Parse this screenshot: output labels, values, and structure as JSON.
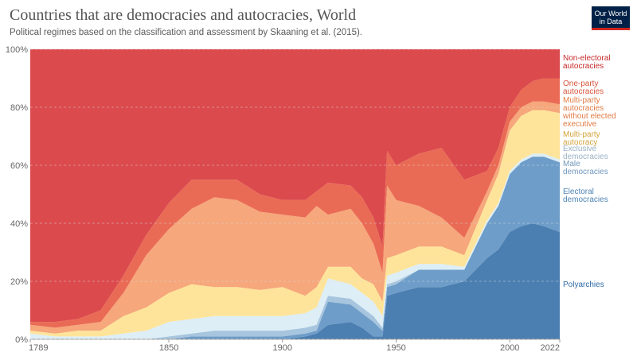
{
  "header": {
    "title": "Countries that are democracies and autocracies, World",
    "subtitle": "Political regimes based on the classification and assessment by Skaaning et al. (2015).",
    "logo_line1": "Our World",
    "logo_line2": "in Data"
  },
  "colors": {
    "text_primary": "#555555",
    "axis": "#666666",
    "grid": "#dddddd"
  },
  "chart_data": {
    "type": "area",
    "stacked": true,
    "normalized": true,
    "title": "Countries that are democracies and autocracies, World",
    "subtitle": "Political regimes based on the classification and assessment by Skaaning et al. (2015).",
    "x_ticks": [
      1789,
      1850,
      1900,
      1950,
      2000,
      2022
    ],
    "y_ticks": [
      "0%",
      "20%",
      "40%",
      "60%",
      "80%",
      "100%"
    ],
    "xlim": [
      1789,
      2022
    ],
    "ylim": [
      0,
      100
    ],
    "grid": "horizontal dashed",
    "legend": "right, inline labels",
    "x": [
      1789,
      1800,
      1810,
      1820,
      1830,
      1840,
      1850,
      1860,
      1870,
      1880,
      1890,
      1900,
      1910,
      1915,
      1920,
      1930,
      1935,
      1940,
      1944,
      1946,
      1950,
      1960,
      1970,
      1980,
      1990,
      1995,
      2000,
      2005,
      2010,
      2015,
      2022
    ],
    "series": [
      {
        "name": "Polyarchies",
        "color": "#4c7fb1",
        "values": [
          0,
          0,
          0,
          0,
          0,
          0,
          0,
          0,
          0,
          0,
          0,
          0,
          1,
          2,
          5,
          6,
          4,
          1,
          1,
          15,
          16,
          18,
          18,
          20,
          28,
          31,
          37,
          39,
          40,
          39,
          37
        ]
      },
      {
        "name": "Electoral democracies",
        "color": "#6e9dc9",
        "values": [
          0,
          0,
          0,
          0,
          0,
          0,
          0,
          1,
          1,
          1,
          1,
          1,
          1,
          1,
          8,
          6,
          5,
          5,
          2,
          3,
          3,
          6,
          6,
          4,
          12,
          15,
          20,
          22,
          23,
          24,
          24
        ]
      },
      {
        "name": "Male democracies",
        "color": "#a7c5de",
        "values": [
          0,
          0,
          0,
          0,
          0,
          0,
          1,
          1,
          2,
          2,
          2,
          2,
          2,
          2,
          2,
          2,
          2,
          2,
          1,
          1,
          1,
          0,
          0,
          0,
          0,
          0,
          0,
          0,
          0,
          0,
          0
        ]
      },
      {
        "name": "Exclusive democracies",
        "color": "#ddeef6",
        "values": [
          2,
          1,
          1,
          1,
          2,
          3,
          5,
          5,
          5,
          5,
          5,
          5,
          5,
          6,
          6,
          5,
          5,
          5,
          4,
          3,
          3,
          2,
          2,
          1,
          1,
          1,
          1,
          1,
          1,
          1,
          1
        ]
      },
      {
        "name": "Multi-party autocracy",
        "color": "#fee49a",
        "values": [
          1,
          1,
          2,
          2,
          6,
          8,
          10,
          12,
          10,
          10,
          9,
          10,
          6,
          7,
          4,
          6,
          5,
          6,
          5,
          6,
          6,
          6,
          6,
          4,
          7,
          10,
          14,
          15,
          15,
          15,
          16
        ]
      },
      {
        "name": "Multi-party autocracies without elected executive",
        "color": "#f6a77b",
        "values": [
          2,
          2,
          2,
          3,
          8,
          18,
          22,
          26,
          31,
          30,
          27,
          25,
          27,
          28,
          18,
          20,
          19,
          14,
          10,
          25,
          19,
          14,
          10,
          6,
          3,
          3,
          3,
          3,
          3,
          3,
          3
        ]
      },
      {
        "name": "One-party autocracies",
        "color": "#ea6b55",
        "values": [
          1,
          2,
          2,
          4,
          6,
          7,
          9,
          10,
          6,
          7,
          6,
          5,
          6,
          5,
          11,
          8,
          9,
          9,
          9,
          12,
          12,
          18,
          24,
          20,
          7,
          6,
          5,
          6,
          7,
          8,
          9
        ]
      },
      {
        "name": "Non-electoral autocracies",
        "color": "#db4a4d",
        "values": [
          94,
          94,
          93,
          90,
          78,
          64,
          53,
          45,
          45,
          45,
          50,
          52,
          52,
          49,
          46,
          47,
          51,
          58,
          68,
          35,
          40,
          36,
          34,
          45,
          42,
          34,
          20,
          14,
          11,
          10,
          10
        ]
      }
    ]
  }
}
